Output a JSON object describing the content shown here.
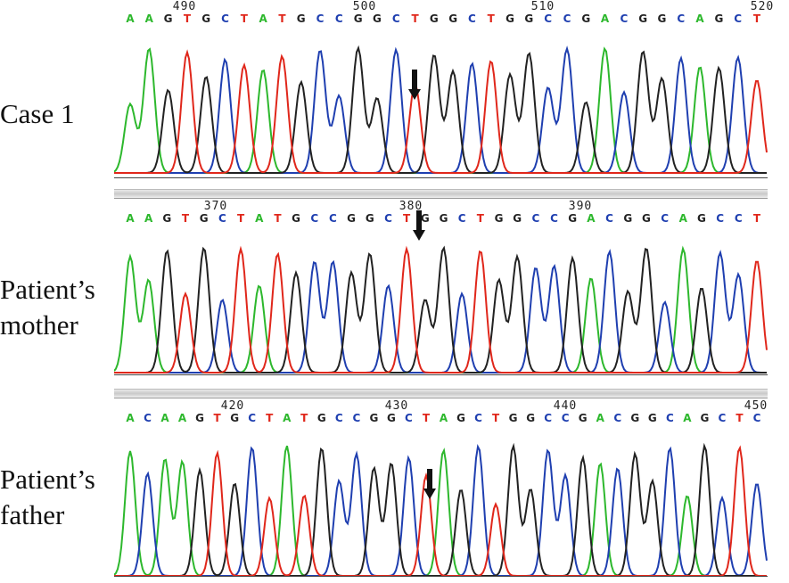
{
  "colors": {
    "A": "#2db82d",
    "C": "#1f3fb0",
    "G": "#222222",
    "T": "#e0271b"
  },
  "panels": [
    {
      "label": "Case 1",
      "ticks": [
        "490",
        "500",
        "510",
        "520"
      ],
      "sequence": "AAGTGCTATGCCGGCTGGCTGGCCGACGGCAGCT",
      "arrow": "down-arrow-icon"
    },
    {
      "label": "Patient's mother",
      "ticks": [
        "370",
        "380",
        "390"
      ],
      "sequence": "AAGTGCTATGCCGGCTGGCTGGCCGACGGCAGCCT",
      "arrow": "down-arrow-icon"
    },
    {
      "label": "Patient's father",
      "ticks": [
        "420",
        "430",
        "440",
        "450"
      ],
      "sequence": "ACAAGTGCTATGCCGGCTAGCTGGCCGACGGCAGCTC",
      "arrow": "down-arrow-icon"
    }
  ]
}
